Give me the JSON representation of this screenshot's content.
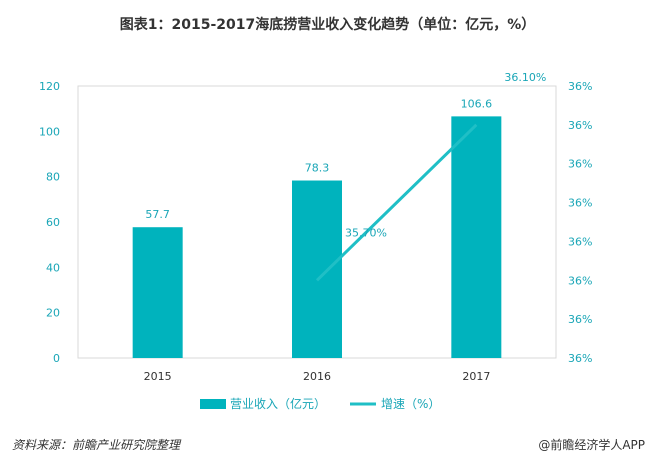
{
  "title": "图表1：2015-2017海底捞营业收入变化趋势（单位：亿元，%）",
  "footer": {
    "source": "资料来源：前瞻产业研究院整理",
    "brand": "@前瞻经济学人APP"
  },
  "colors": {
    "bar": "#00b3bd",
    "line": "#1fbfc6",
    "axis_text": "#1aa6b7",
    "border": "#d9d9d9"
  },
  "chart_data": {
    "type": "bar",
    "categories": [
      "2015",
      "2016",
      "2017"
    ],
    "series": [
      {
        "name": "营业收入（亿元）",
        "type": "bar",
        "axis": "left",
        "values": [
          57.7,
          78.3,
          106.6
        ],
        "labels": [
          "57.7",
          "78.3",
          "106.6"
        ]
      },
      {
        "name": "增速（%）",
        "type": "line",
        "axis": "right",
        "values": [
          null,
          35.7,
          36.1
        ],
        "labels": [
          "",
          "35.70%",
          "36.10%"
        ]
      }
    ],
    "left_axis": {
      "min": 0,
      "max": 120,
      "ticks": [
        "0",
        "20",
        "40",
        "60",
        "80",
        "100",
        "120"
      ]
    },
    "right_axis": {
      "min": 35.5,
      "max": 36.2,
      "ticks": [
        "36%",
        "36%",
        "36%",
        "36%",
        "36%",
        "36%",
        "36%",
        "36%"
      ]
    },
    "grid": false,
    "legend": "bottom"
  }
}
